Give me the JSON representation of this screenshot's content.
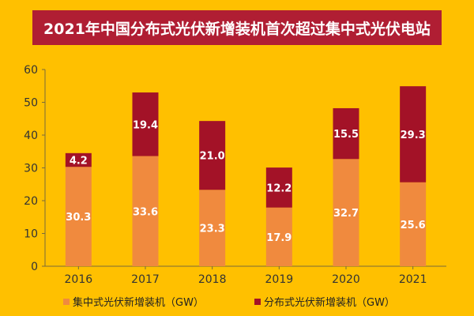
{
  "title": "2021年中国分布式光伏新增装机首次超过集中式光伏电站",
  "colors": {
    "background": "#FFC000",
    "title_bar": "#B01E33",
    "series_centralized": "#F08A3E",
    "series_distributed": "#A31227"
  },
  "legend": {
    "centralized": "集中式光伏新增装机（GW）",
    "distributed": "分布式光伏新增装机（GW）"
  },
  "chart_data": {
    "type": "bar",
    "stacked": true,
    "categories": [
      "2016",
      "2017",
      "2018",
      "2019",
      "2020",
      "2021"
    ],
    "series": [
      {
        "name": "集中式光伏新增装机（GW）",
        "values": [
          30.3,
          33.6,
          23.3,
          17.9,
          32.7,
          25.6
        ],
        "labels": [
          "30.3",
          "33.6",
          "23.3",
          "17.9",
          "32.7",
          "25.6"
        ]
      },
      {
        "name": "分布式光伏新增装机（GW）",
        "values": [
          4.2,
          19.4,
          21.0,
          12.2,
          15.5,
          29.3
        ],
        "labels": [
          "4.2",
          "19.4",
          "21.0",
          "12.2",
          "15.5",
          "29.3"
        ]
      }
    ],
    "ylim": [
      0,
      60
    ],
    "yticks": [
      0,
      10,
      20,
      30,
      40,
      50,
      60
    ],
    "grid": false,
    "legend_position": "bottom"
  }
}
